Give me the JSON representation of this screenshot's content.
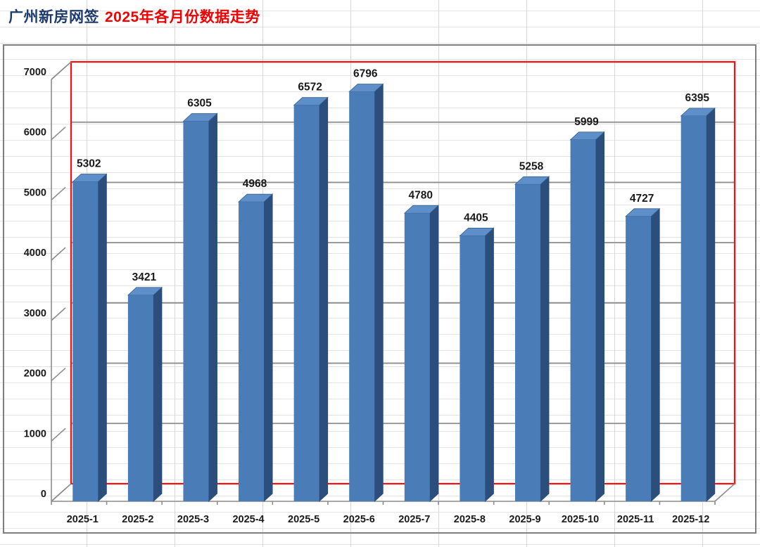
{
  "header": {
    "title_primary": "广州新房网签",
    "title_secondary": "2025年各月份数据走势",
    "title_primary_color": "#1d3b6e",
    "title_secondary_color": "#f00000"
  },
  "chart_data": {
    "type": "bar",
    "variant": "3d-column",
    "title": "广州新房网签 2025年各月份数据走势",
    "categories": [
      "2025-1",
      "2025-2",
      "2025-3",
      "2025-4",
      "2025-5",
      "2025-6",
      "2025-7",
      "2025-8",
      "2025-9",
      "2025-10",
      "2025-11",
      "2025-12"
    ],
    "values": [
      5302,
      3421,
      6305,
      4968,
      6572,
      6796,
      4780,
      4405,
      5258,
      5999,
      4727,
      6395
    ],
    "data_labels_shown": true,
    "xlabel": "",
    "ylabel": "",
    "ylim": [
      0,
      7000
    ],
    "ytick_interval": 1000,
    "yticks": [
      0,
      1000,
      2000,
      3000,
      4000,
      5000,
      6000,
      7000
    ],
    "grid": true,
    "legend": false,
    "colors": {
      "bar_front": "#4a7db8",
      "bar_side": "#2b4e7c",
      "bar_top": "#5f8fc9",
      "bar_edge": "#34618f",
      "wall_border": "#fb0d0d",
      "gridline": "#8c8c8c",
      "axis": "#8c8c8c",
      "chart_border": "#7f7f7f",
      "label_text": "#1a1a1a"
    }
  }
}
